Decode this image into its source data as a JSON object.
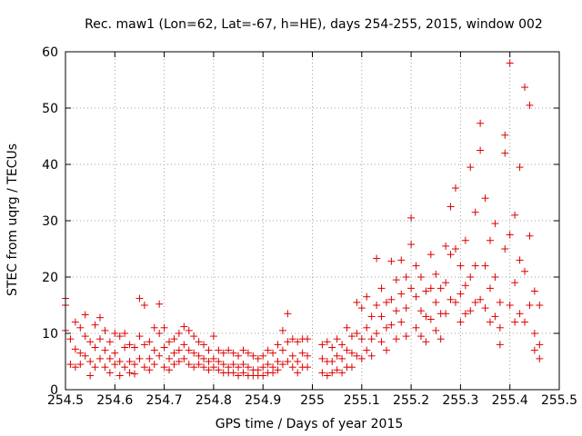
{
  "chart_data": {
    "type": "scatter",
    "title": "Rec. maw1 (Lon=62, Lat=-67, h=HE), days 254-255, 2015, window 002",
    "xlabel": "GPS time / Days of year 2015",
    "ylabel": "STEC from uqrg / TECUs",
    "xlim": [
      254.5,
      255.5
    ],
    "ylim": [
      0,
      60
    ],
    "x_ticks": [
      "254.5",
      "254.6",
      "254.7",
      "254.8",
      "254.9",
      "255",
      "255.1",
      "255.2",
      "255.3",
      "255.4",
      "255.5"
    ],
    "y_ticks": [
      "0",
      "10",
      "20",
      "30",
      "40",
      "50",
      "60"
    ],
    "grid": true,
    "marker": "+",
    "color": "#dd0000",
    "points": [
      [
        254.5,
        15.0
      ],
      [
        254.5,
        16.2
      ],
      [
        254.5,
        10.5
      ],
      [
        254.51,
        4.5
      ],
      [
        254.51,
        9.0
      ],
      [
        254.52,
        12.0
      ],
      [
        254.52,
        7.2
      ],
      [
        254.52,
        4.0
      ],
      [
        254.53,
        11.0
      ],
      [
        254.53,
        6.5
      ],
      [
        254.53,
        4.5
      ],
      [
        254.54,
        13.3
      ],
      [
        254.54,
        9.5
      ],
      [
        254.54,
        6.0
      ],
      [
        254.55,
        8.5
      ],
      [
        254.55,
        5.0
      ],
      [
        254.55,
        2.5
      ],
      [
        254.56,
        11.5
      ],
      [
        254.56,
        7.5
      ],
      [
        254.56,
        4.0
      ],
      [
        254.57,
        12.8
      ],
      [
        254.57,
        9.0
      ],
      [
        254.57,
        5.5
      ],
      [
        254.58,
        10.5
      ],
      [
        254.58,
        7.0
      ],
      [
        254.58,
        4.0
      ],
      [
        254.59,
        8.5
      ],
      [
        254.59,
        5.5
      ],
      [
        254.59,
        3.0
      ],
      [
        254.6,
        10.0
      ],
      [
        254.6,
        6.5
      ],
      [
        254.6,
        4.5
      ],
      [
        254.61,
        9.5
      ],
      [
        254.61,
        5.0
      ],
      [
        254.61,
        2.5
      ],
      [
        254.62,
        10.0
      ],
      [
        254.62,
        7.5
      ],
      [
        254.62,
        4.0
      ],
      [
        254.63,
        8.0
      ],
      [
        254.63,
        5.0
      ],
      [
        254.63,
        3.0
      ],
      [
        254.64,
        7.5
      ],
      [
        254.64,
        4.5
      ],
      [
        254.64,
        2.8
      ],
      [
        254.65,
        16.2
      ],
      [
        254.65,
        9.5
      ],
      [
        254.65,
        5.5
      ],
      [
        254.66,
        15.0
      ],
      [
        254.66,
        8.0
      ],
      [
        254.66,
        4.0
      ],
      [
        254.67,
        8.5
      ],
      [
        254.67,
        5.5
      ],
      [
        254.67,
        3.5
      ],
      [
        254.68,
        11.0
      ],
      [
        254.68,
        7.0
      ],
      [
        254.68,
        4.5
      ],
      [
        254.69,
        15.2
      ],
      [
        254.69,
        10.0
      ],
      [
        254.69,
        6.0
      ],
      [
        254.7,
        11.0
      ],
      [
        254.7,
        7.5
      ],
      [
        254.7,
        4.0
      ],
      [
        254.71,
        8.5
      ],
      [
        254.71,
        5.5
      ],
      [
        254.71,
        3.5
      ],
      [
        254.72,
        9.0
      ],
      [
        254.72,
        6.5
      ],
      [
        254.72,
        4.5
      ],
      [
        254.73,
        10.0
      ],
      [
        254.73,
        7.0
      ],
      [
        254.73,
        5.0
      ],
      [
        254.74,
        11.2
      ],
      [
        254.74,
        8.0
      ],
      [
        254.74,
        5.5
      ],
      [
        254.75,
        10.5
      ],
      [
        254.75,
        7.0
      ],
      [
        254.75,
        4.5
      ],
      [
        254.76,
        9.5
      ],
      [
        254.76,
        6.5
      ],
      [
        254.76,
        4.0
      ],
      [
        254.77,
        8.5
      ],
      [
        254.77,
        6.0
      ],
      [
        254.77,
        4.5
      ],
      [
        254.78,
        8.0
      ],
      [
        254.78,
        5.5
      ],
      [
        254.78,
        4.0
      ],
      [
        254.79,
        7.0
      ],
      [
        254.79,
        5.0
      ],
      [
        254.79,
        3.5
      ],
      [
        254.8,
        9.5
      ],
      [
        254.8,
        5.5
      ],
      [
        254.8,
        4.0
      ],
      [
        254.81,
        7.0
      ],
      [
        254.81,
        5.0
      ],
      [
        254.81,
        3.5
      ],
      [
        254.82,
        6.5
      ],
      [
        254.82,
        4.5
      ],
      [
        254.82,
        3.0
      ],
      [
        254.83,
        7.0
      ],
      [
        254.83,
        4.0
      ],
      [
        254.83,
        3.0
      ],
      [
        254.84,
        6.5
      ],
      [
        254.84,
        4.5
      ],
      [
        254.84,
        3.0
      ],
      [
        254.85,
        6.0
      ],
      [
        254.85,
        4.0
      ],
      [
        254.85,
        2.5
      ],
      [
        254.86,
        7.0
      ],
      [
        254.86,
        4.5
      ],
      [
        254.86,
        3.0
      ],
      [
        254.87,
        6.5
      ],
      [
        254.87,
        4.0
      ],
      [
        254.87,
        2.5
      ],
      [
        254.88,
        6.0
      ],
      [
        254.88,
        3.5
      ],
      [
        254.88,
        2.5
      ],
      [
        254.89,
        5.5
      ],
      [
        254.89,
        3.5
      ],
      [
        254.89,
        2.5
      ],
      [
        254.9,
        6.0
      ],
      [
        254.9,
        4.0
      ],
      [
        254.9,
        2.5
      ],
      [
        254.91,
        7.0
      ],
      [
        254.91,
        4.5
      ],
      [
        254.91,
        3.0
      ],
      [
        254.92,
        6.5
      ],
      [
        254.92,
        4.0
      ],
      [
        254.92,
        3.0
      ],
      [
        254.93,
        8.0
      ],
      [
        254.93,
        5.0
      ],
      [
        254.93,
        3.5
      ],
      [
        254.94,
        10.5
      ],
      [
        254.94,
        7.0
      ],
      [
        254.94,
        4.5
      ],
      [
        254.95,
        13.5
      ],
      [
        254.95,
        8.5
      ],
      [
        254.95,
        5.0
      ],
      [
        254.96,
        9.0
      ],
      [
        254.96,
        6.0
      ],
      [
        254.96,
        4.0
      ],
      [
        254.97,
        8.5
      ],
      [
        254.97,
        5.0
      ],
      [
        254.97,
        3.0
      ],
      [
        254.98,
        9.0
      ],
      [
        254.98,
        6.5
      ],
      [
        254.98,
        4.0
      ],
      [
        254.99,
        9.0
      ],
      [
        254.99,
        6.0
      ],
      [
        254.99,
        4.0
      ],
      [
        255.02,
        8.0
      ],
      [
        255.02,
        5.5
      ],
      [
        255.02,
        3.0
      ],
      [
        255.03,
        8.5
      ],
      [
        255.03,
        5.0
      ],
      [
        255.03,
        2.5
      ],
      [
        255.04,
        7.5
      ],
      [
        255.04,
        5.0
      ],
      [
        255.04,
        3.0
      ],
      [
        255.05,
        9.0
      ],
      [
        255.05,
        6.0
      ],
      [
        255.05,
        3.5
      ],
      [
        255.06,
        8.0
      ],
      [
        255.06,
        5.5
      ],
      [
        255.06,
        3.0
      ],
      [
        255.07,
        11.0
      ],
      [
        255.07,
        7.0
      ],
      [
        255.07,
        4.0
      ],
      [
        255.08,
        9.5
      ],
      [
        255.08,
        6.5
      ],
      [
        255.08,
        4.0
      ],
      [
        255.09,
        15.5
      ],
      [
        255.09,
        10.0
      ],
      [
        255.09,
        6.0
      ],
      [
        255.1,
        14.5
      ],
      [
        255.1,
        9.0
      ],
      [
        255.1,
        5.5
      ],
      [
        255.11,
        16.5
      ],
      [
        255.11,
        11.0
      ],
      [
        255.11,
        7.0
      ],
      [
        255.12,
        13.0
      ],
      [
        255.12,
        9.0
      ],
      [
        255.12,
        6.0
      ],
      [
        255.13,
        23.3
      ],
      [
        255.13,
        15.0
      ],
      [
        255.13,
        10.0
      ],
      [
        255.14,
        18.0
      ],
      [
        255.14,
        13.0
      ],
      [
        255.14,
        8.5
      ],
      [
        255.15,
        15.5
      ],
      [
        255.15,
        11.0
      ],
      [
        255.15,
        7.0
      ],
      [
        255.16,
        22.8
      ],
      [
        255.16,
        16.0
      ],
      [
        255.16,
        11.5
      ],
      [
        255.17,
        19.5
      ],
      [
        255.17,
        14.0
      ],
      [
        255.17,
        9.0
      ],
      [
        255.18,
        23.0
      ],
      [
        255.18,
        17.0
      ],
      [
        255.18,
        12.0
      ],
      [
        255.19,
        20.0
      ],
      [
        255.19,
        14.5
      ],
      [
        255.19,
        9.5
      ],
      [
        255.2,
        30.5
      ],
      [
        255.2,
        25.8
      ],
      [
        255.2,
        18.0
      ],
      [
        255.21,
        22.0
      ],
      [
        255.21,
        16.5
      ],
      [
        255.21,
        11.0
      ],
      [
        255.22,
        20.0
      ],
      [
        255.22,
        14.0
      ],
      [
        255.22,
        9.5
      ],
      [
        255.23,
        17.5
      ],
      [
        255.23,
        13.0
      ],
      [
        255.23,
        8.5
      ],
      [
        255.24,
        24.0
      ],
      [
        255.24,
        18.0
      ],
      [
        255.24,
        12.5
      ],
      [
        255.25,
        20.5
      ],
      [
        255.25,
        15.5
      ],
      [
        255.25,
        10.5
      ],
      [
        255.26,
        18.0
      ],
      [
        255.26,
        13.5
      ],
      [
        255.26,
        9.0
      ],
      [
        255.27,
        25.5
      ],
      [
        255.27,
        19.0
      ],
      [
        255.27,
        13.5
      ],
      [
        255.28,
        32.5
      ],
      [
        255.28,
        24.0
      ],
      [
        255.28,
        16.0
      ],
      [
        255.29,
        35.8
      ],
      [
        255.29,
        25.0
      ],
      [
        255.29,
        15.5
      ],
      [
        255.3,
        22.0
      ],
      [
        255.3,
        17.0
      ],
      [
        255.3,
        12.0
      ],
      [
        255.31,
        26.5
      ],
      [
        255.31,
        18.5
      ],
      [
        255.31,
        13.5
      ],
      [
        255.32,
        39.5
      ],
      [
        255.32,
        20.0
      ],
      [
        255.32,
        14.0
      ],
      [
        255.33,
        31.5
      ],
      [
        255.33,
        22.0
      ],
      [
        255.33,
        15.5
      ],
      [
        255.34,
        47.3
      ],
      [
        255.34,
        42.5
      ],
      [
        255.34,
        16.0
      ],
      [
        255.35,
        34.0
      ],
      [
        255.35,
        22.0
      ],
      [
        255.35,
        14.5
      ],
      [
        255.36,
        26.5
      ],
      [
        255.36,
        18.0
      ],
      [
        255.36,
        12.0
      ],
      [
        255.37,
        29.5
      ],
      [
        255.37,
        20.0
      ],
      [
        255.37,
        13.0
      ],
      [
        255.38,
        15.5
      ],
      [
        255.38,
        11.0
      ],
      [
        255.38,
        8.0
      ],
      [
        255.39,
        45.2
      ],
      [
        255.39,
        42.0
      ],
      [
        255.39,
        25.0
      ],
      [
        255.4,
        58.0
      ],
      [
        255.4,
        27.5
      ],
      [
        255.4,
        15.0
      ],
      [
        255.41,
        31.0
      ],
      [
        255.41,
        19.0
      ],
      [
        255.41,
        12.0
      ],
      [
        255.42,
        39.5
      ],
      [
        255.42,
        23.0
      ],
      [
        255.42,
        13.5
      ],
      [
        255.43,
        53.7
      ],
      [
        255.43,
        21.0
      ],
      [
        255.43,
        12.0
      ],
      [
        255.44,
        50.5
      ],
      [
        255.44,
        27.3
      ],
      [
        255.44,
        15.0
      ],
      [
        255.45,
        17.5
      ],
      [
        255.45,
        10.0
      ],
      [
        255.45,
        7.0
      ],
      [
        255.46,
        15.0
      ],
      [
        255.46,
        8.0
      ],
      [
        255.46,
        5.5
      ]
    ]
  }
}
